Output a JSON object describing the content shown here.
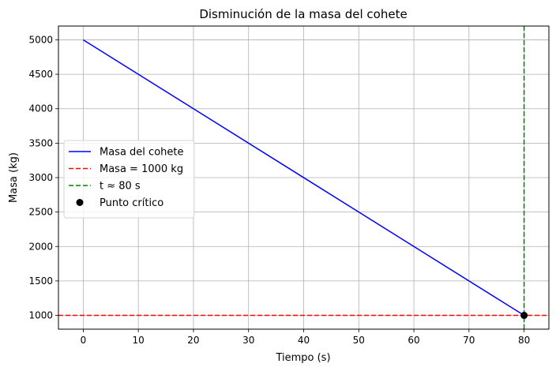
{
  "chart_data": {
    "type": "line",
    "title": "Disminución de la masa del cohete",
    "xlabel": "Tiempo (s)",
    "ylabel": "Masa (kg)",
    "xlim": [
      -4.5,
      84.5
    ],
    "ylim": [
      800,
      5200
    ],
    "x_ticks": [
      0,
      10,
      20,
      30,
      40,
      50,
      60,
      70,
      80
    ],
    "y_ticks": [
      1000,
      1500,
      2000,
      2500,
      3000,
      3500,
      4000,
      4500,
      5000
    ],
    "grid": true,
    "legend_position": "center-left",
    "series": [
      {
        "name": "Masa del cohete",
        "kind": "line",
        "style": "solid",
        "color": "#0000ff",
        "x": [
          0,
          80
        ],
        "y": [
          5000,
          1000
        ]
      },
      {
        "name": "Masa = 1000 kg",
        "kind": "hline",
        "style": "dashed",
        "color": "#ff0000",
        "y": 1000
      },
      {
        "name": "t ≈ 80 s",
        "kind": "vline",
        "style": "dashed",
        "color": "#008000",
        "x": 80
      },
      {
        "name": "Punto crítico",
        "kind": "point",
        "color": "#000000",
        "x": 80,
        "y": 1000
      }
    ]
  }
}
